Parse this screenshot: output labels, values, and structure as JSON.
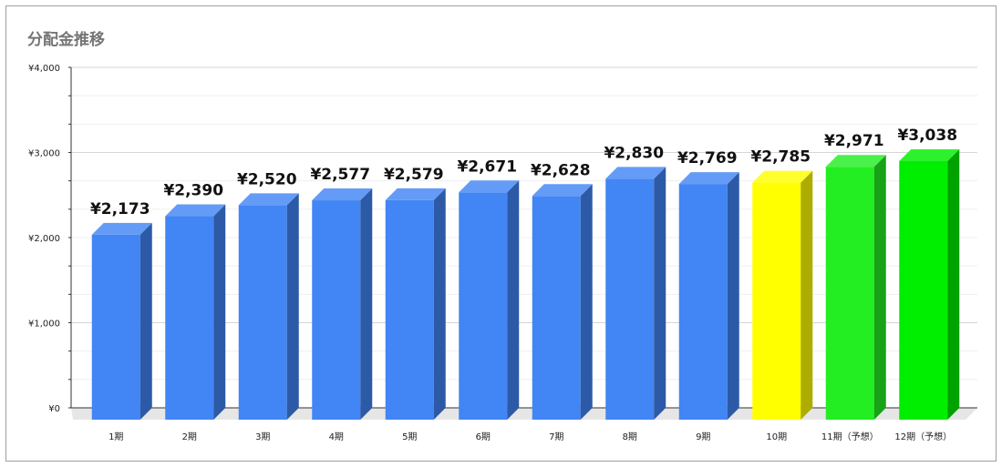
{
  "chart_data": {
    "type": "bar",
    "title": "分配金推移",
    "xlabel": "",
    "ylabel": "",
    "ylim": [
      0,
      4000
    ],
    "y_ticks": [
      "¥0",
      "¥1,000",
      "¥2,000",
      "¥3,000",
      "¥4,000"
    ],
    "y_tick_values": [
      0,
      1000,
      2000,
      3000,
      4000
    ],
    "grid": true,
    "categories": [
      "1期",
      "2期",
      "3期",
      "4期",
      "5期",
      "6期",
      "7期",
      "8期",
      "9期",
      "10期",
      "11期（予想）",
      "12期（予想）"
    ],
    "values": [
      2173,
      2390,
      2520,
      2577,
      2579,
      2671,
      2628,
      2830,
      2769,
      2785,
      2971,
      3038
    ],
    "value_labels": [
      "¥2,173",
      "¥2,390",
      "¥2,520",
      "¥2,577",
      "¥2,579",
      "¥2,671",
      "¥2,628",
      "¥2,830",
      "¥2,769",
      "¥2,785",
      "¥2,971",
      "¥3,038"
    ],
    "bar_colors": [
      "#4285f4",
      "#4285f4",
      "#4285f4",
      "#4285f4",
      "#4285f4",
      "#4285f4",
      "#4285f4",
      "#4285f4",
      "#4285f4",
      "#ffff00",
      "#22ee22",
      "#00ee00"
    ],
    "style": "3d"
  }
}
